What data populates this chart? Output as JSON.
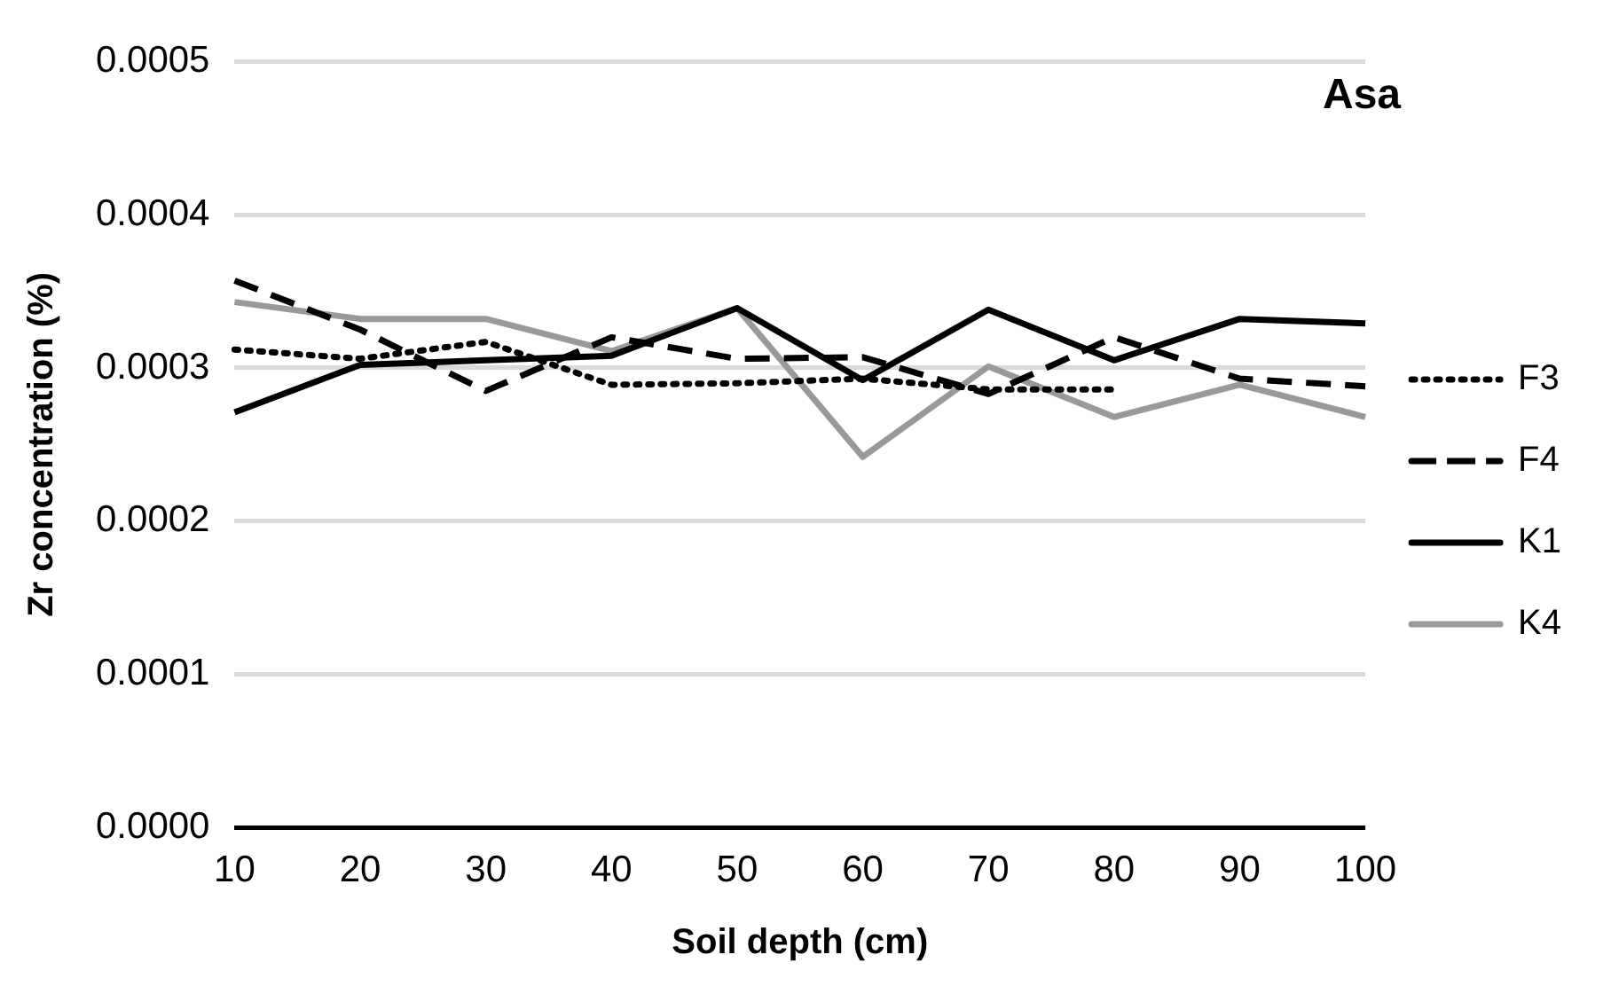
{
  "chart_data": {
    "type": "line",
    "title": "Asa",
    "xlabel": "Soil depth (cm)",
    "ylabel": "Zr concentration (%)",
    "categories": [
      "10",
      "20",
      "30",
      "40",
      "50",
      "60",
      "70",
      "80",
      "90",
      "100"
    ],
    "series": [
      {
        "name": "F3",
        "color": "#000000",
        "line_style": "dotted",
        "values": [
          0.000312,
          0.000306,
          0.000317,
          0.000289,
          0.00029,
          0.000293,
          0.000286,
          0.000286,
          null,
          null
        ]
      },
      {
        "name": "F4",
        "color": "#000000",
        "line_style": "dashed",
        "values": [
          0.000357,
          0.000325,
          0.000285,
          0.00032,
          0.000306,
          0.000307,
          0.000283,
          0.00032,
          0.000293,
          0.000288
        ]
      },
      {
        "name": "K1",
        "color": "#000000",
        "line_style": "solid",
        "values": [
          0.000271,
          0.000302,
          0.000305,
          0.000308,
          0.000339,
          0.000292,
          0.000338,
          0.000305,
          0.000332,
          0.000329
        ]
      },
      {
        "name": "K4",
        "color": "#999999",
        "line_style": "solid",
        "values": [
          0.000343,
          0.000332,
          0.000332,
          0.000311,
          0.000339,
          0.000242,
          0.000301,
          0.000268,
          0.000289,
          0.000268
        ]
      }
    ],
    "ylim": [
      0,
      0.0005
    ],
    "yticks": [
      {
        "value": 0,
        "label": "0.0000"
      },
      {
        "value": 0.0001,
        "label": "0.0001"
      },
      {
        "value": 0.0002,
        "label": "0.0002"
      },
      {
        "value": 0.0003,
        "label": "0.0003"
      },
      {
        "value": 0.0004,
        "label": "0.0004"
      },
      {
        "value": 0.0005,
        "label": "0.0005"
      }
    ],
    "grid": "y",
    "legend": "right",
    "marker": "none"
  }
}
